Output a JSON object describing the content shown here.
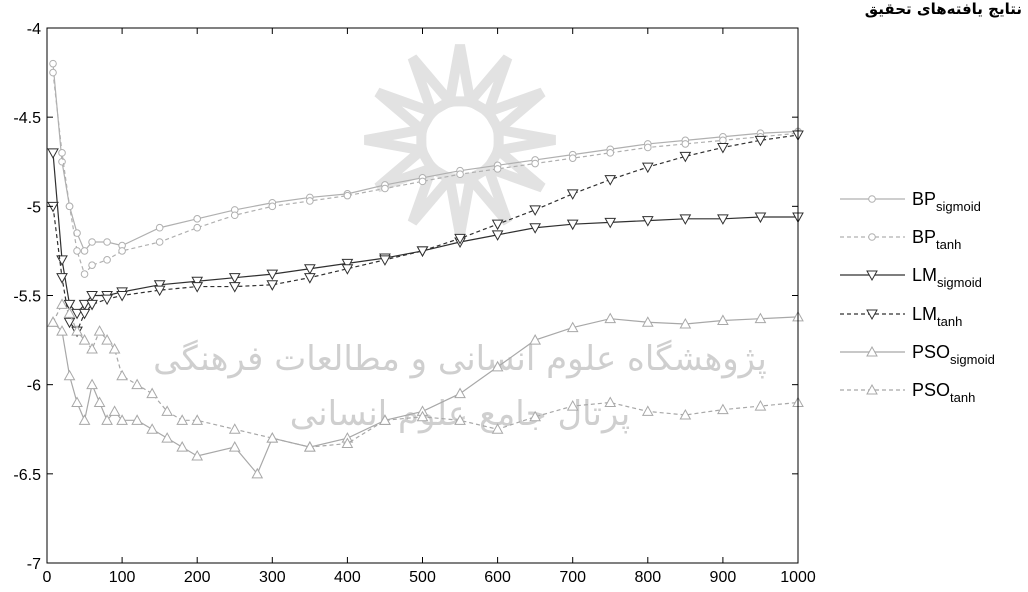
{
  "header": {
    "text": "نتایج یافته‌های تحقیق"
  },
  "watermark": {
    "line1": "پژوهشگاه علوم انسانی و مطالعات فرهنگی",
    "line2": "پرتال جامع علوم انسانی"
  },
  "chart_data": {
    "type": "line",
    "title": "",
    "xlabel": "",
    "ylabel": "",
    "xlim": [
      0,
      1000
    ],
    "ylim": [
      -7,
      -4
    ],
    "xticks": [
      "0",
      "100",
      "200",
      "300",
      "400",
      "500",
      "600",
      "700",
      "800",
      "900",
      "1000"
    ],
    "yticks": [
      "-4",
      "-4.5",
      "-5",
      "-5.5",
      "-6",
      "-6.5",
      "-7"
    ],
    "grid": false,
    "legend_position": "outside-right",
    "series": [
      {
        "name": "BP",
        "sub": "sigmoid",
        "color": "#b0b0b0",
        "dash": "solid",
        "marker": "circle",
        "x": [
          8,
          20,
          30,
          40,
          50,
          60,
          80,
          100,
          150,
          200,
          250,
          300,
          350,
          400,
          450,
          500,
          550,
          600,
          650,
          700,
          750,
          800,
          850,
          900,
          950,
          1000
        ],
        "y": [
          -4.2,
          -4.75,
          -5.0,
          -5.15,
          -5.25,
          -5.2,
          -5.2,
          -5.22,
          -5.12,
          -5.07,
          -5.02,
          -4.98,
          -4.95,
          -4.93,
          -4.88,
          -4.84,
          -4.8,
          -4.77,
          -4.74,
          -4.71,
          -4.68,
          -4.65,
          -4.63,
          -4.61,
          -4.59,
          -4.58
        ]
      },
      {
        "name": "BP",
        "sub": "tanh",
        "color": "#b0b0b0",
        "dash": "dashed",
        "marker": "circle",
        "x": [
          8,
          20,
          30,
          40,
          50,
          60,
          80,
          100,
          150,
          200,
          250,
          300,
          350,
          400,
          450,
          500,
          550,
          600,
          650,
          700,
          750,
          800,
          850,
          900,
          950,
          1000
        ],
        "y": [
          -4.25,
          -4.7,
          -5.0,
          -5.25,
          -5.38,
          -5.33,
          -5.3,
          -5.25,
          -5.2,
          -5.12,
          -5.05,
          -5.0,
          -4.97,
          -4.94,
          -4.9,
          -4.86,
          -4.82,
          -4.79,
          -4.76,
          -4.73,
          -4.7,
          -4.67,
          -4.65,
          -4.63,
          -4.61,
          -4.59
        ]
      },
      {
        "name": "LM",
        "sub": "sigmoid",
        "color": "#303030",
        "dash": "solid",
        "marker": "triangle-down",
        "x": [
          8,
          20,
          30,
          40,
          50,
          60,
          80,
          100,
          150,
          200,
          250,
          300,
          350,
          400,
          450,
          500,
          550,
          600,
          650,
          700,
          750,
          800,
          850,
          900,
          950,
          1000
        ],
        "y": [
          -4.7,
          -5.3,
          -5.55,
          -5.6,
          -5.55,
          -5.5,
          -5.5,
          -5.48,
          -5.44,
          -5.42,
          -5.4,
          -5.38,
          -5.35,
          -5.32,
          -5.29,
          -5.25,
          -5.2,
          -5.16,
          -5.12,
          -5.1,
          -5.09,
          -5.08,
          -5.07,
          -5.07,
          -5.06,
          -5.06
        ]
      },
      {
        "name": "LM",
        "sub": "tanh",
        "color": "#303030",
        "dash": "dashed",
        "marker": "triangle-down",
        "x": [
          8,
          20,
          30,
          40,
          50,
          60,
          80,
          100,
          150,
          200,
          250,
          300,
          350,
          400,
          450,
          500,
          550,
          600,
          650,
          700,
          750,
          800,
          850,
          900,
          950,
          1000
        ],
        "y": [
          -5.0,
          -5.4,
          -5.65,
          -5.7,
          -5.6,
          -5.55,
          -5.52,
          -5.5,
          -5.47,
          -5.45,
          -5.45,
          -5.44,
          -5.4,
          -5.35,
          -5.3,
          -5.25,
          -5.18,
          -5.1,
          -5.02,
          -4.93,
          -4.85,
          -4.78,
          -4.72,
          -4.67,
          -4.63,
          -4.6
        ]
      },
      {
        "name": "PSO",
        "sub": "sigmoid",
        "color": "#a8a8a8",
        "dash": "solid",
        "marker": "triangle-up",
        "x": [
          8,
          20,
          30,
          40,
          50,
          60,
          70,
          80,
          90,
          100,
          120,
          140,
          160,
          180,
          200,
          250,
          280,
          300,
          350,
          400,
          450,
          500,
          550,
          600,
          650,
          700,
          750,
          800,
          850,
          900,
          950,
          1000
        ],
        "y": [
          -5.65,
          -5.7,
          -5.95,
          -6.1,
          -6.2,
          -6.0,
          -6.1,
          -6.2,
          -6.15,
          -6.2,
          -6.2,
          -6.25,
          -6.3,
          -6.35,
          -6.4,
          -6.35,
          -6.5,
          -6.3,
          -6.35,
          -6.3,
          -6.2,
          -6.15,
          -6.05,
          -5.9,
          -5.75,
          -5.68,
          -5.63,
          -5.65,
          -5.66,
          -5.64,
          -5.63,
          -5.62
        ]
      },
      {
        "name": "PSO",
        "sub": "tanh",
        "color": "#a8a8a8",
        "dash": "dashed",
        "marker": "triangle-up",
        "x": [
          8,
          20,
          30,
          40,
          50,
          60,
          70,
          80,
          90,
          100,
          120,
          140,
          160,
          180,
          200,
          250,
          300,
          350,
          400,
          450,
          500,
          550,
          600,
          650,
          700,
          750,
          800,
          850,
          900,
          950,
          1000
        ],
        "y": [
          -5.65,
          -5.55,
          -5.6,
          -5.7,
          -5.75,
          -5.8,
          -5.7,
          -5.75,
          -5.8,
          -5.95,
          -6.0,
          -6.05,
          -6.15,
          -6.2,
          -6.2,
          -6.25,
          -6.3,
          -6.35,
          -6.33,
          -6.2,
          -6.18,
          -6.2,
          -6.25,
          -6.18,
          -6.12,
          -6.1,
          -6.15,
          -6.17,
          -6.14,
          -6.12,
          -6.1
        ]
      }
    ]
  }
}
